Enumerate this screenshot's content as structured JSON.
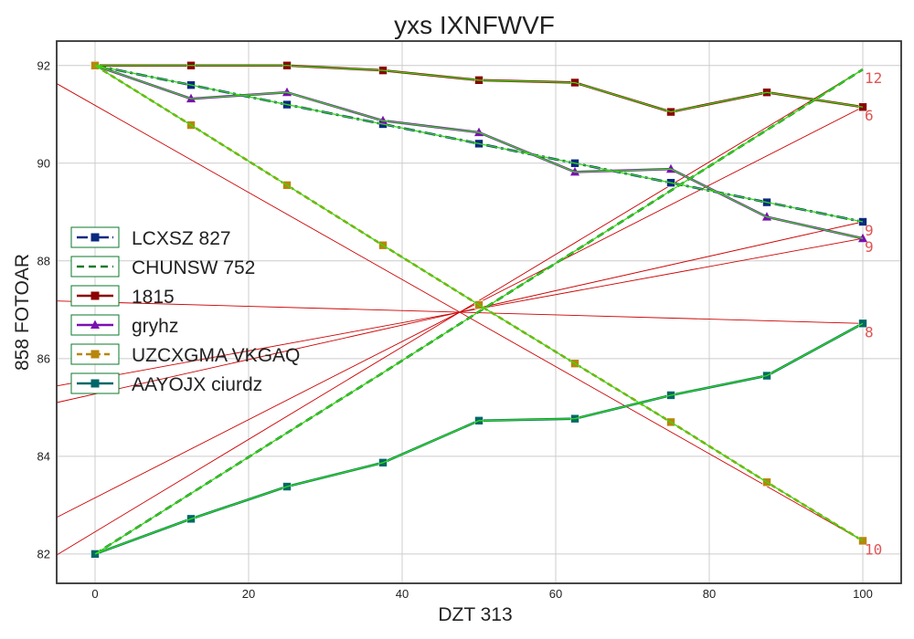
{
  "chart_data": {
    "type": "line",
    "title": "yxs IXNFWVF",
    "xlabel": "DZT 313",
    "ylabel": "858 FOTOAR",
    "xlim": [
      -5,
      105
    ],
    "ylim": [
      81.4,
      92.5
    ],
    "xticks": [
      0,
      20,
      40,
      60,
      80,
      100
    ],
    "yticks": [
      82,
      84,
      86,
      88,
      90,
      92
    ],
    "grid": true,
    "legend_position": "center-left",
    "x": [
      0,
      12.5,
      25,
      37.5,
      50,
      62.5,
      75,
      87.5,
      100
    ],
    "series": [
      {
        "name": "LCXSZ 827",
        "color": "#0a2a80",
        "dash": "12,4,3,4",
        "marker": "square",
        "values": [
          92.0,
          91.6,
          91.2,
          90.8,
          90.4,
          90.0,
          89.6,
          89.2,
          88.8
        ]
      },
      {
        "name": "CHUNSW 752",
        "color": "#1a7a2a",
        "dash": "8,5",
        "marker": "none",
        "values": [
          82.0,
          83.24,
          84.48,
          85.71,
          86.96,
          88.2,
          89.44,
          90.68,
          91.92
        ]
      },
      {
        "name": "1815",
        "color": "#8b0000",
        "dash": "",
        "marker": "square",
        "values": [
          92.0,
          92.0,
          92.0,
          91.9,
          91.7,
          91.65,
          91.05,
          91.45,
          91.15
        ]
      },
      {
        "name": "gryhz",
        "color": "#7a10b0",
        "dash": "",
        "marker": "triangle",
        "values": [
          92.0,
          91.32,
          91.45,
          90.87,
          90.63,
          89.82,
          89.88,
          88.9,
          88.46
        ]
      },
      {
        "name": "UZCXGMA VKGAQ",
        "color": "#b8860b",
        "dash": "6,4",
        "marker": "square",
        "values": [
          92.0,
          90.78,
          89.55,
          88.32,
          87.1,
          85.9,
          84.7,
          83.47,
          82.27
        ]
      },
      {
        "name": "AAYOJX ciurdz",
        "color": "#006868",
        "dash": "",
        "marker": "square",
        "values": [
          82.0,
          82.72,
          83.38,
          83.87,
          84.73,
          84.77,
          85.25,
          85.65,
          86.72
        ]
      }
    ],
    "end_labels": [
      "9",
      "12",
      "6",
      "9",
      "10",
      "8"
    ],
    "colors": {
      "overlay_green": "#33dd11",
      "overlay_red": "#cc0000",
      "end_label": "#e05555",
      "legend_border": "#0a7a2a",
      "grid": "#cccccc",
      "frame": "#333333"
    }
  }
}
